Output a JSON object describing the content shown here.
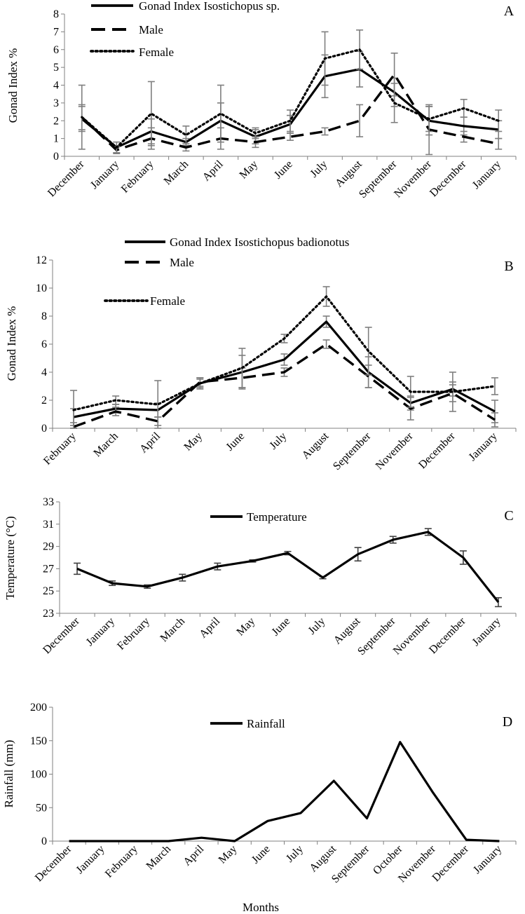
{
  "chart_data": [
    {
      "type": "line",
      "panel": "A",
      "ylabel": "Gonad Index %",
      "xlabel": "",
      "ylim": [
        0,
        8
      ],
      "yticks": [
        "0",
        "1",
        "2",
        "3",
        "4",
        "5",
        "6",
        "7",
        "8"
      ],
      "categories": [
        "December",
        "January",
        "February",
        "March",
        "April",
        "May",
        "June",
        "July",
        "August",
        "September",
        "November",
        "December",
        "January"
      ],
      "legend_position": "top",
      "series": [
        {
          "name": "Gonad Index Isostichopus sp.",
          "style": "solid",
          "values": [
            2.1,
            0.5,
            1.4,
            0.8,
            2.0,
            1.1,
            1.8,
            4.5,
            4.9,
            3.6,
            2.0,
            1.7,
            1.5
          ],
          "err": [
            0.7,
            0.3,
            0.7,
            0.2,
            1.0,
            0.4,
            0.5,
            1.2,
            1.0,
            0.8,
            0.8,
            0.5,
            0.5
          ]
        },
        {
          "name": "Male",
          "style": "dashed",
          "values": [
            2.2,
            0.35,
            1.0,
            0.5,
            1.0,
            0.8,
            1.1,
            1.4,
            2.0,
            4.6,
            1.5,
            1.1,
            0.7
          ],
          "err": [
            0.7,
            0.2,
            0.6,
            0.2,
            0.6,
            0.3,
            0.2,
            0.2,
            0.9,
            1.2,
            1.4,
            0.3,
            0.3
          ]
        },
        {
          "name": "Female",
          "style": "dotted",
          "values": [
            2.2,
            0.5,
            2.4,
            1.2,
            2.4,
            1.3,
            2.0,
            5.5,
            6.0,
            3.0,
            2.1,
            2.7,
            2.0
          ],
          "err": [
            1.8,
            0.3,
            1.8,
            0.5,
            1.6,
            0.3,
            0.6,
            1.5,
            1.1,
            1.1,
            0.7,
            0.5,
            0.6
          ]
        }
      ]
    },
    {
      "type": "line",
      "panel": "B",
      "ylabel": "Gonad Index %",
      "xlabel": "",
      "ylim": [
        0,
        12
      ],
      "yticks": [
        "0",
        "2",
        "4",
        "6",
        "8",
        "10",
        "12"
      ],
      "categories": [
        "February",
        "March",
        "April",
        "May",
        "June",
        "July",
        "August",
        "September",
        "November",
        "December",
        "January"
      ],
      "legend_position": "top",
      "series": [
        {
          "name": "Gonad Index Isostichopus badionotus",
          "style": "solid",
          "values": [
            0.8,
            1.4,
            1.3,
            3.2,
            4.0,
            4.9,
            7.6,
            4.0,
            1.8,
            2.8,
            1.2
          ],
          "err": [
            0.6,
            0.3,
            0.5,
            0.4,
            1.2,
            0.4,
            0.4,
            1.1,
            0.5,
            0.5,
            0.8
          ]
        },
        {
          "name": "Male",
          "style": "dashed",
          "values": [
            0.1,
            1.2,
            0.5,
            3.3,
            3.6,
            4.0,
            6.0,
            3.7,
            1.4,
            2.5,
            0.6
          ],
          "err": [
            0.3,
            0.3,
            0.3,
            0.3,
            0.7,
            0.3,
            0.3,
            0.8,
            0.8,
            0.6,
            0.5
          ]
        },
        {
          "name": "Female",
          "style": "dotted",
          "values": [
            1.3,
            2.0,
            1.7,
            3.2,
            4.3,
            6.4,
            9.4,
            5.5,
            2.6,
            2.6,
            3.0
          ],
          "err": [
            1.4,
            0.3,
            1.7,
            0.3,
            1.4,
            0.3,
            0.7,
            1.7,
            1.1,
            1.4,
            0.6
          ]
        }
      ]
    },
    {
      "type": "line",
      "panel": "C",
      "ylabel": "Temperature (°C)",
      "xlabel": "",
      "ylim": [
        23,
        33
      ],
      "yticks": [
        "23",
        "25",
        "27",
        "29",
        "31",
        "33"
      ],
      "categories": [
        "December",
        "January",
        "February",
        "March",
        "April",
        "May",
        "June",
        "July",
        "August",
        "September",
        "November",
        "December",
        "January"
      ],
      "legend_position": "top",
      "series": [
        {
          "name": "Temperature",
          "style": "solid",
          "values": [
            27.0,
            25.7,
            25.4,
            26.2,
            27.2,
            27.7,
            28.4,
            26.2,
            28.3,
            29.6,
            30.3,
            28.0,
            24.0
          ],
          "err": [
            0.5,
            0.2,
            0.15,
            0.3,
            0.3,
            0.1,
            0.15,
            0.1,
            0.6,
            0.3,
            0.3,
            0.6,
            0.4
          ]
        }
      ]
    },
    {
      "type": "line",
      "panel": "D",
      "ylabel": "Rainfall  (mm)",
      "xlabel": "Months",
      "ylim": [
        0,
        200
      ],
      "yticks": [
        "0",
        "50",
        "100",
        "150",
        "200"
      ],
      "categories": [
        "December",
        "January",
        "February",
        "March",
        "April",
        "May",
        "June",
        "July",
        "August",
        "September",
        "October",
        "November",
        "December",
        "January"
      ],
      "legend_position": "top",
      "series": [
        {
          "name": "Rainfall",
          "style": "solid",
          "values": [
            0,
            0,
            0,
            0,
            5,
            0,
            30,
            42,
            90,
            34,
            148,
            72,
            2,
            0
          ],
          "err": []
        }
      ]
    }
  ]
}
